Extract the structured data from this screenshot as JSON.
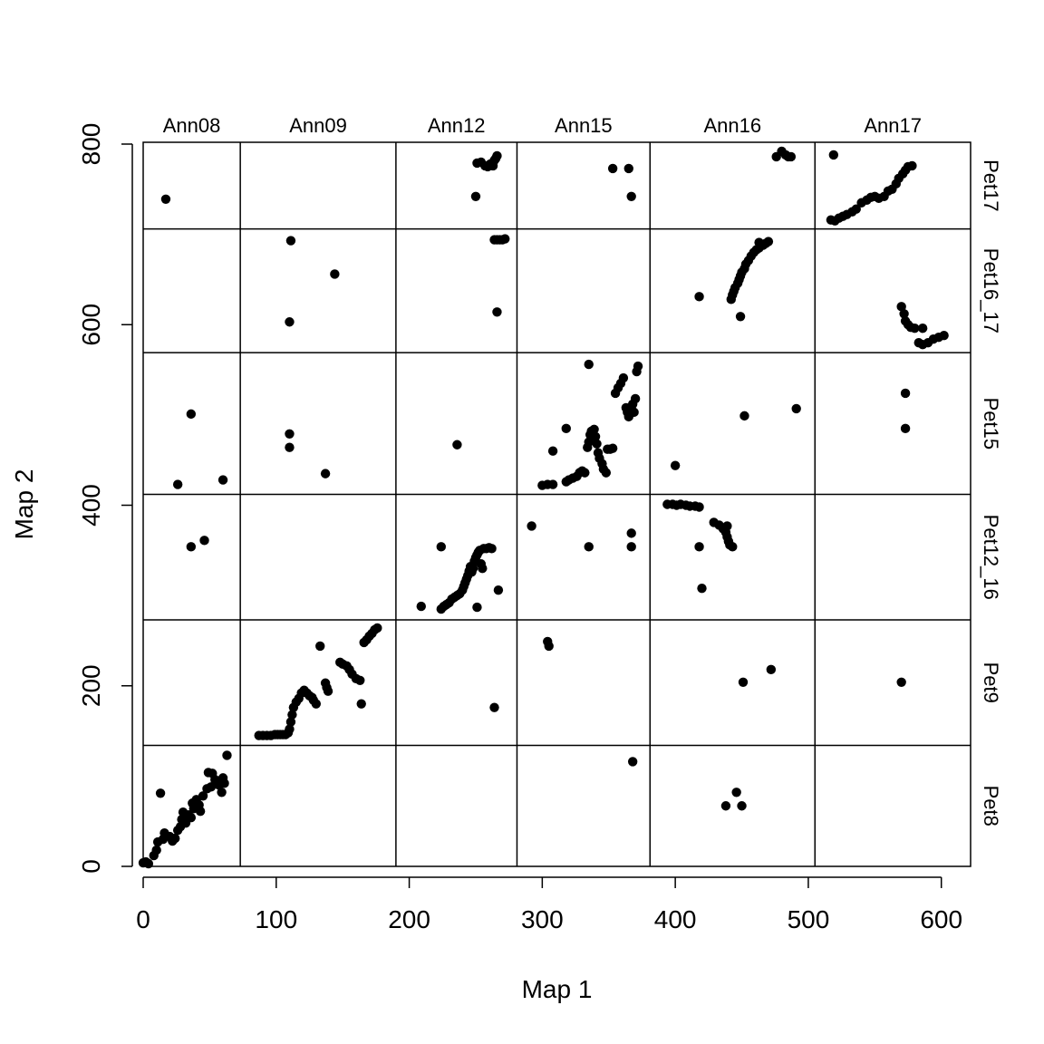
{
  "chart_data": {
    "type": "scatter",
    "title": "",
    "xlabel": "Map 1",
    "ylabel": "Map 2",
    "xlim": [
      0,
      622
    ],
    "ylim": [
      0,
      802
    ],
    "x_ticks": [
      0,
      100,
      200,
      300,
      400,
      500,
      600
    ],
    "y_ticks": [
      0,
      200,
      400,
      600,
      800
    ],
    "x_boundaries": [
      0,
      73,
      190,
      281,
      381,
      505,
      622
    ],
    "y_boundaries": [
      0,
      134,
      273,
      412,
      569,
      706,
      802
    ],
    "columns": [
      "Ann08",
      "Ann09",
      "Ann12",
      "Ann15",
      "Ann16",
      "Ann17"
    ],
    "rows": [
      "Pet8",
      "Pet9",
      "Pet12_16",
      "Pet15",
      "Pet16_17",
      "Pet17"
    ],
    "marker_color": "#000000",
    "points": [
      [
        0,
        4
      ],
      [
        2,
        5
      ],
      [
        4,
        3
      ],
      [
        8,
        12
      ],
      [
        10,
        18
      ],
      [
        11,
        27
      ],
      [
        13,
        81
      ],
      [
        15,
        30
      ],
      [
        16,
        37
      ],
      [
        20,
        33
      ],
      [
        22,
        28
      ],
      [
        24,
        31
      ],
      [
        26,
        40
      ],
      [
        28,
        44
      ],
      [
        29,
        52
      ],
      [
        30,
        60
      ],
      [
        32,
        48
      ],
      [
        34,
        57
      ],
      [
        36,
        54
      ],
      [
        37,
        70
      ],
      [
        38,
        64
      ],
      [
        40,
        74
      ],
      [
        42,
        68
      ],
      [
        43,
        61
      ],
      [
        45,
        78
      ],
      [
        48,
        86
      ],
      [
        49,
        104
      ],
      [
        51,
        88
      ],
      [
        52,
        103
      ],
      [
        54,
        96
      ],
      [
        55,
        93
      ],
      [
        57,
        90
      ],
      [
        59,
        82
      ],
      [
        60,
        98
      ],
      [
        61,
        92
      ],
      [
        63,
        123
      ],
      [
        17,
        739
      ],
      [
        36,
        501
      ],
      [
        26,
        423
      ],
      [
        60,
        428
      ],
      [
        36,
        354
      ],
      [
        46,
        361
      ],
      [
        87,
        145
      ],
      [
        90,
        145
      ],
      [
        93,
        145
      ],
      [
        96,
        145
      ],
      [
        99,
        146
      ],
      [
        101,
        146
      ],
      [
        103,
        146
      ],
      [
        105,
        146
      ],
      [
        107,
        146
      ],
      [
        109,
        148
      ],
      [
        110,
        152
      ],
      [
        111,
        160
      ],
      [
        112,
        168
      ],
      [
        113,
        176
      ],
      [
        115,
        182
      ],
      [
        117,
        186
      ],
      [
        119,
        192
      ],
      [
        121,
        195
      ],
      [
        123,
        192
      ],
      [
        125,
        189
      ],
      [
        127,
        187
      ],
      [
        128,
        184
      ],
      [
        130,
        180
      ],
      [
        133,
        244
      ],
      [
        137,
        203
      ],
      [
        138,
        198
      ],
      [
        139,
        194
      ],
      [
        148,
        226
      ],
      [
        150,
        224
      ],
      [
        153,
        222
      ],
      [
        155,
        218
      ],
      [
        157,
        213
      ],
      [
        160,
        208
      ],
      [
        163,
        206
      ],
      [
        164,
        180
      ],
      [
        166,
        248
      ],
      [
        168,
        251
      ],
      [
        170,
        255
      ],
      [
        172,
        258
      ],
      [
        174,
        262
      ],
      [
        176,
        264
      ],
      [
        110,
        603
      ],
      [
        111,
        693
      ],
      [
        144,
        656
      ],
      [
        110,
        464
      ],
      [
        110,
        479
      ],
      [
        137,
        435
      ],
      [
        209,
        288
      ],
      [
        224,
        285
      ],
      [
        226,
        288
      ],
      [
        228,
        290
      ],
      [
        230,
        292
      ],
      [
        232,
        296
      ],
      [
        234,
        298
      ],
      [
        236,
        300
      ],
      [
        238,
        302
      ],
      [
        240,
        306
      ],
      [
        241,
        310
      ],
      [
        242,
        314
      ],
      [
        243,
        318
      ],
      [
        244,
        322
      ],
      [
        245,
        327
      ],
      [
        246,
        332
      ],
      [
        247,
        326
      ],
      [
        248,
        330
      ],
      [
        249,
        338
      ],
      [
        250,
        342
      ],
      [
        251,
        345
      ],
      [
        252,
        348
      ],
      [
        253,
        350
      ],
      [
        254,
        335
      ],
      [
        255,
        330
      ],
      [
        256,
        352
      ],
      [
        258,
        352
      ],
      [
        260,
        353
      ],
      [
        262,
        352
      ],
      [
        224,
        354
      ],
      [
        251,
        287
      ],
      [
        267,
        306
      ],
      [
        264,
        176
      ],
      [
        236,
        467
      ],
      [
        251,
        779
      ],
      [
        254,
        780
      ],
      [
        257,
        776
      ],
      [
        259,
        775
      ],
      [
        261,
        778
      ],
      [
        263,
        776
      ],
      [
        264,
        782
      ],
      [
        265,
        784
      ],
      [
        266,
        787
      ],
      [
        250,
        742
      ],
      [
        264,
        694
      ],
      [
        266,
        694
      ],
      [
        268,
        694
      ],
      [
        270,
        694
      ],
      [
        272,
        695
      ],
      [
        266,
        614
      ],
      [
        300,
        422
      ],
      [
        304,
        423
      ],
      [
        308,
        423
      ],
      [
        318,
        426
      ],
      [
        320,
        428
      ],
      [
        323,
        430
      ],
      [
        326,
        432
      ],
      [
        328,
        436
      ],
      [
        330,
        438
      ],
      [
        332,
        436
      ],
      [
        334,
        464
      ],
      [
        335,
        470
      ],
      [
        336,
        478
      ],
      [
        337,
        482
      ],
      [
        339,
        484
      ],
      [
        340,
        476
      ],
      [
        341,
        468
      ],
      [
        342,
        458
      ],
      [
        343,
        452
      ],
      [
        345,
        446
      ],
      [
        346,
        440
      ],
      [
        348,
        436
      ],
      [
        349,
        462
      ],
      [
        351,
        462
      ],
      [
        353,
        463
      ],
      [
        355,
        524
      ],
      [
        357,
        530
      ],
      [
        359,
        535
      ],
      [
        361,
        541
      ],
      [
        363,
        508
      ],
      [
        364,
        503
      ],
      [
        365,
        498
      ],
      [
        366,
        506
      ],
      [
        368,
        512
      ],
      [
        369,
        503
      ],
      [
        370,
        518
      ],
      [
        371,
        548
      ],
      [
        372,
        554
      ],
      [
        308,
        460
      ],
      [
        318,
        485
      ],
      [
        335,
        556
      ],
      [
        292,
        377
      ],
      [
        335,
        354
      ],
      [
        367,
        369
      ],
      [
        367,
        354
      ],
      [
        304,
        249
      ],
      [
        305,
        244
      ],
      [
        368,
        116
      ],
      [
        353,
        773
      ],
      [
        365,
        773
      ],
      [
        367,
        742
      ],
      [
        394,
        401
      ],
      [
        398,
        401
      ],
      [
        401,
        400
      ],
      [
        404,
        401
      ],
      [
        408,
        400
      ],
      [
        411,
        399
      ],
      [
        415,
        399
      ],
      [
        418,
        398
      ],
      [
        429,
        381
      ],
      [
        433,
        378
      ],
      [
        436,
        374
      ],
      [
        438,
        370
      ],
      [
        439,
        365
      ],
      [
        440,
        360
      ],
      [
        441,
        356
      ],
      [
        443,
        354
      ],
      [
        439,
        377
      ],
      [
        418,
        354
      ],
      [
        420,
        308
      ],
      [
        400,
        444
      ],
      [
        452,
        499
      ],
      [
        491,
        507
      ],
      [
        442,
        628
      ],
      [
        443,
        633
      ],
      [
        444,
        637
      ],
      [
        445,
        641
      ],
      [
        447,
        646
      ],
      [
        448,
        650
      ],
      [
        449,
        654
      ],
      [
        450,
        658
      ],
      [
        452,
        662
      ],
      [
        453,
        667
      ],
      [
        455,
        671
      ],
      [
        457,
        676
      ],
      [
        459,
        680
      ],
      [
        461,
        683
      ],
      [
        463,
        685
      ],
      [
        466,
        688
      ],
      [
        468,
        690
      ],
      [
        470,
        692
      ],
      [
        449,
        609
      ],
      [
        418,
        631
      ],
      [
        463,
        691
      ],
      [
        451,
        204
      ],
      [
        472,
        218
      ],
      [
        446,
        82
      ],
      [
        438,
        67
      ],
      [
        450,
        67
      ],
      [
        476,
        786
      ],
      [
        480,
        792
      ],
      [
        483,
        788
      ],
      [
        485,
        786
      ],
      [
        487,
        786
      ],
      [
        519,
        788
      ],
      [
        517,
        716
      ],
      [
        520,
        715
      ],
      [
        523,
        718
      ],
      [
        526,
        720
      ],
      [
        529,
        722
      ],
      [
        533,
        725
      ],
      [
        536,
        728
      ],
      [
        540,
        735
      ],
      [
        544,
        738
      ],
      [
        547,
        741
      ],
      [
        550,
        742
      ],
      [
        553,
        740
      ],
      [
        557,
        742
      ],
      [
        560,
        748
      ],
      [
        563,
        750
      ],
      [
        566,
        756
      ],
      [
        568,
        762
      ],
      [
        571,
        767
      ],
      [
        573,
        771
      ],
      [
        575,
        775
      ],
      [
        578,
        776
      ],
      [
        570,
        620
      ],
      [
        572,
        612
      ],
      [
        573,
        604
      ],
      [
        575,
        600
      ],
      [
        577,
        597
      ],
      [
        580,
        596
      ],
      [
        583,
        580
      ],
      [
        586,
        578
      ],
      [
        590,
        580
      ],
      [
        594,
        584
      ],
      [
        598,
        586
      ],
      [
        602,
        588
      ],
      [
        586,
        596
      ],
      [
        573,
        524
      ],
      [
        573,
        485
      ],
      [
        570,
        204
      ]
    ]
  }
}
